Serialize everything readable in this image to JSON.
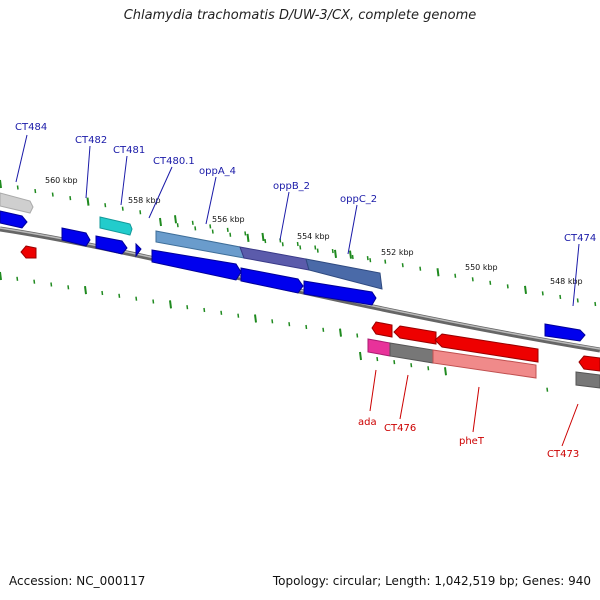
{
  "title": "Chlamydia trachomatis D/UW-3/CX, complete genome",
  "footer": {
    "accession": "Accession: NC_000117",
    "summary": "Topology: circular; Length: 1,042,519 bp; Genes: 940"
  },
  "colors": {
    "forward_label": "#1a1aa8",
    "reverse_label": "#cc0000",
    "forward_gene": "#0000ee",
    "reverse_gene": "#ee0000",
    "tick": "#1f8a1f",
    "backbone": "#888888"
  },
  "ruler": {
    "ticks": [
      "560 kbp",
      "558 kbp",
      "556 kbp",
      "554 kbp",
      "552 kbp",
      "550 kbp",
      "548 kbp"
    ]
  },
  "forward_genes": [
    {
      "name": "CT484"
    },
    {
      "name": "CT482"
    },
    {
      "name": "CT481"
    },
    {
      "name": "CT480.1"
    },
    {
      "name": "oppA_4"
    },
    {
      "name": "oppB_2"
    },
    {
      "name": "oppC_2"
    },
    {
      "name": "CT474"
    }
  ],
  "reverse_genes": [
    {
      "name": "ada"
    },
    {
      "name": "CT476"
    },
    {
      "name": "pheT"
    },
    {
      "name": "CT473"
    }
  ]
}
